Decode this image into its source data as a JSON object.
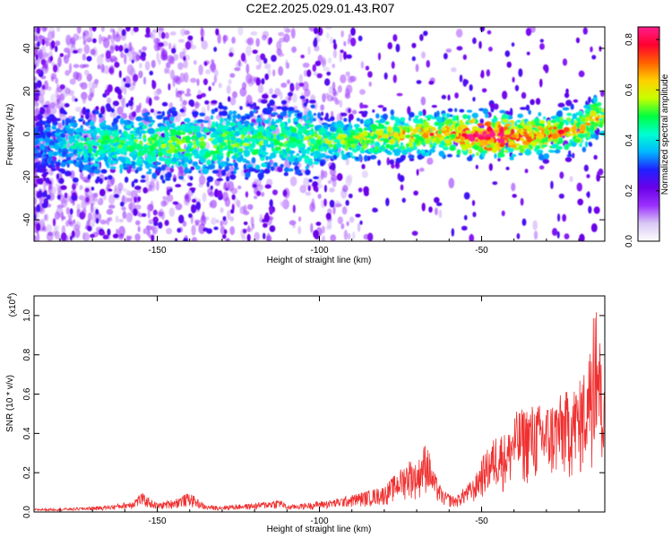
{
  "title": "C2E2.2025.029.01.43.R07",
  "colors": {
    "signal_line": "#f03030",
    "axis": "#000000",
    "background": "#ffffff",
    "colormap": [
      "#ffffff",
      "#d9c8f5",
      "#9b30ff",
      "#6a00e8",
      "#2020ff",
      "#00b8ff",
      "#00ffd0",
      "#00ff40",
      "#c8ff00",
      "#ffd000",
      "#ff6000",
      "#ff0030",
      "#ff1e8c"
    ]
  },
  "chart_data": [
    {
      "type": "heatmap",
      "title": "",
      "xlabel": "Height of straight line (km)",
      "ylabel": "Frequency (Hz)",
      "xlim": [
        -188,
        -12
      ],
      "ylim": [
        -50,
        50
      ],
      "xticks": [
        "-150",
        "-100",
        "-50"
      ],
      "xtick_values": [
        -150,
        -100,
        -50
      ],
      "yticks": [
        "-40",
        "-20",
        "0",
        "20",
        "40"
      ],
      "ytick_values": [
        -40,
        -20,
        0,
        20,
        40
      ],
      "colorbar": {
        "label": "Normalized spectral amplitude",
        "range": [
          0,
          0.85
        ],
        "ticks": [
          "0.0",
          "0.2",
          "0.4",
          "0.6",
          "0.8"
        ],
        "tick_values": [
          0,
          0.2,
          0.4,
          0.6,
          0.8
        ],
        "placement": "right"
      },
      "ridge": {
        "x": [
          -188,
          -170,
          -150,
          -130,
          -110,
          -100,
          -90,
          -80,
          -70,
          -60,
          -50,
          -40,
          -30,
          -20,
          -12
        ],
        "center_freq": [
          -4,
          -5,
          -5,
          -4,
          -3,
          -3,
          -3,
          -1,
          0,
          0,
          -1,
          -1,
          0,
          2,
          10
        ],
        "amplitude": [
          0.15,
          0.3,
          0.35,
          0.35,
          0.33,
          0.35,
          0.4,
          0.45,
          0.5,
          0.5,
          0.8,
          0.6,
          0.55,
          0.5,
          0.45
        ]
      }
    },
    {
      "type": "line",
      "title": "",
      "xlabel": "Height of straight line (km)",
      "ylabel": "SNR (10 * v/v)",
      "y_multiplier": "(x10",
      "y_multiplier_exp": "4",
      "y_multiplier_close": ")",
      "xlim": [
        -188,
        -12
      ],
      "ylim": [
        0,
        1.1
      ],
      "xticks": [
        "-150",
        "-100",
        "-50"
      ],
      "xtick_values": [
        -150,
        -100,
        -50
      ],
      "yticks": [
        "0.0",
        "0.2",
        "0.4",
        "0.6",
        "0.8",
        "1.0"
      ],
      "ytick_values": [
        0,
        0.2,
        0.4,
        0.6,
        0.8,
        1.0
      ],
      "series": [
        {
          "x": [
            -188,
            -175,
            -165,
            -158,
            -155,
            -150,
            -145,
            -140,
            -135,
            -130,
            -120,
            -112,
            -110,
            -105,
            -100,
            -95,
            -90,
            -85,
            -80,
            -75,
            -72,
            -70,
            -67,
            -65,
            -62,
            -58,
            -55,
            -52,
            -50,
            -47,
            -45,
            -42,
            -40,
            -35,
            -30,
            -25,
            -20,
            -17,
            -15,
            -12
          ],
          "y": [
            0.015,
            0.02,
            0.03,
            0.05,
            0.09,
            0.04,
            0.06,
            0.09,
            0.03,
            0.03,
            0.04,
            0.06,
            0.03,
            0.04,
            0.05,
            0.06,
            0.08,
            0.1,
            0.12,
            0.2,
            0.25,
            0.22,
            0.34,
            0.2,
            0.1,
            0.07,
            0.12,
            0.16,
            0.25,
            0.32,
            0.38,
            0.36,
            0.46,
            0.5,
            0.5,
            0.55,
            0.6,
            0.72,
            1.08,
            0.55
          ]
        }
      ]
    }
  ]
}
